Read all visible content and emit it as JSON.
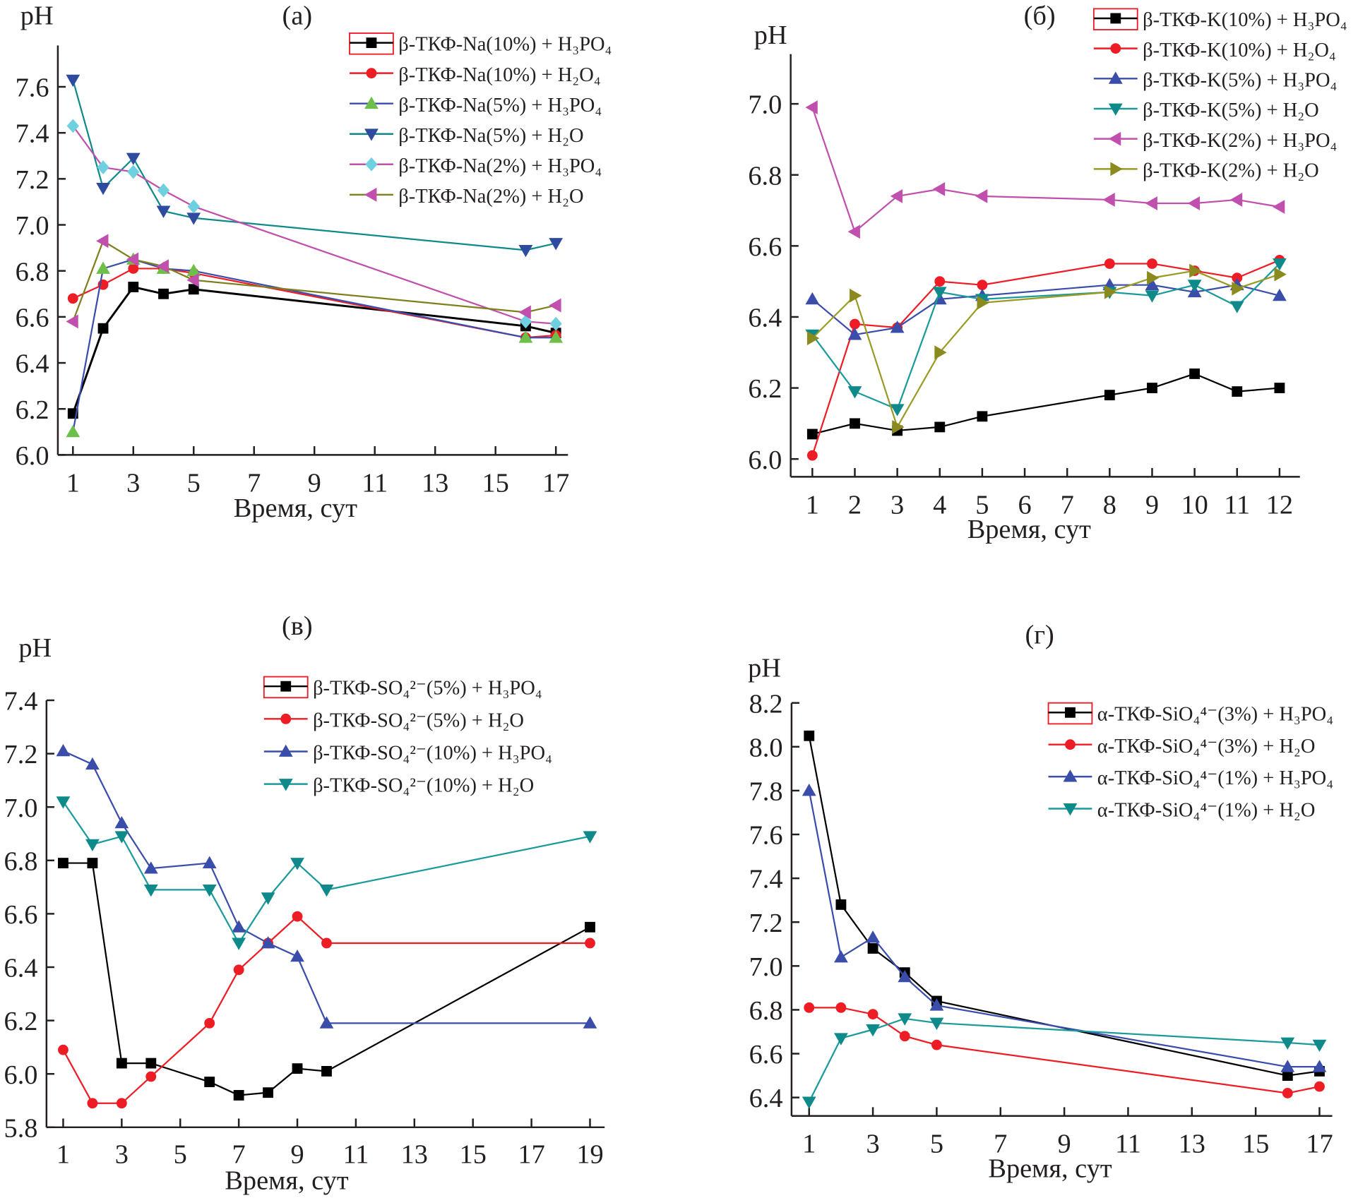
{
  "chart_data": [
    {
      "type": "line",
      "panel_label": "(a)",
      "ylabel": "pH",
      "xlabel": "Время, сут",
      "xlim": [
        0.5,
        17.4
      ],
      "ylim": [
        6.0,
        7.78
      ],
      "xticks": [
        1,
        3,
        5,
        7,
        9,
        11,
        13,
        15,
        17
      ],
      "yticks": [
        6.0,
        6.2,
        6.4,
        6.6,
        6.8,
        7.0,
        7.2,
        7.4,
        7.6
      ],
      "legend_position": "top-right",
      "x": [
        1,
        2,
        3,
        4,
        5,
        16,
        17
      ],
      "series": [
        {
          "name": "β-ТКФ-Na(10%) + H₃PO₄",
          "line_color": "#000000",
          "marker_color": "#000000",
          "marker": "square",
          "values": [
            6.18,
            6.55,
            6.73,
            6.7,
            6.72,
            6.56,
            6.53
          ]
        },
        {
          "name": "β-ТКФ-Na(10%) + H₂O₄",
          "line_color": "#ee1c25",
          "marker_color": "#ee1c25",
          "marker": "circle",
          "values": [
            6.68,
            6.74,
            6.81,
            6.81,
            6.79,
            6.51,
            6.52
          ]
        },
        {
          "name": "β-ТКФ-Na(5%) + H₃PO₄",
          "line_color": "#3a4dab",
          "marker_color": "#6cc04a",
          "marker": "triangle-up",
          "values": [
            6.1,
            6.81,
            6.85,
            6.81,
            6.8,
            6.51,
            6.51
          ]
        },
        {
          "name": "β-ТКФ-Na(5%) + H₂O",
          "line_color": "#0e8a8a",
          "marker_color": "#2f4ba0",
          "marker": "triangle-down",
          "values": [
            7.63,
            7.16,
            7.29,
            7.06,
            7.03,
            6.89,
            6.92
          ]
        },
        {
          "name": "β-ТКФ-Na(2%) + H₃PO₄",
          "line_color": "#c04fae",
          "marker_color": "#6fd0e0",
          "marker": "diamond",
          "values": [
            7.43,
            7.25,
            7.23,
            7.15,
            7.08,
            6.58,
            6.57
          ]
        },
        {
          "name": "β-ТКФ-Na(2%) + H₂O",
          "line_color": "#7f7f1e",
          "marker_color": "#c04fae",
          "marker": "triangle-left",
          "values": [
            6.58,
            6.93,
            6.85,
            6.82,
            6.76,
            6.62,
            6.65
          ]
        }
      ]
    },
    {
      "type": "line",
      "panel_label": "(б)",
      "ylabel": "pH",
      "xlabel": "Время, сут",
      "xlim": [
        0.49,
        12.48
      ],
      "ylim": [
        5.95,
        7.14
      ],
      "xticks": [
        1,
        2,
        3,
        4,
        5,
        6,
        7,
        8,
        9,
        10,
        11,
        12
      ],
      "yticks": [
        6.0,
        6.2,
        6.4,
        6.6,
        6.8,
        7.0
      ],
      "legend_position": "top-right",
      "x": [
        1,
        2,
        3,
        4,
        5,
        8,
        9,
        10,
        11,
        12
      ],
      "series": [
        {
          "name": "β-ТКФ-K(10%) + H₃PO₄",
          "line_color": "#000000",
          "marker_color": "#000000",
          "marker": "square",
          "values": [
            6.07,
            6.1,
            6.08,
            6.09,
            6.12,
            6.18,
            6.2,
            6.24,
            6.19,
            6.2
          ]
        },
        {
          "name": "β-ТКФ-K(10%) + H₂O₄",
          "line_color": "#ee1c25",
          "marker_color": "#ee1c25",
          "marker": "circle",
          "values": [
            6.01,
            6.38,
            6.37,
            6.5,
            6.49,
            6.55,
            6.55,
            6.53,
            6.51,
            6.56
          ]
        },
        {
          "name": "β-ТКФ-K(5%) + H₃PO₄",
          "line_color": "#3a4dab",
          "marker_color": "#3a4dab",
          "marker": "triangle-up",
          "values": [
            6.45,
            6.35,
            6.37,
            6.45,
            6.46,
            6.49,
            6.49,
            6.47,
            6.49,
            6.46
          ]
        },
        {
          "name": "β-ТКФ-K(5%) + H₂O",
          "line_color": "#1a9a9a",
          "marker_color": "#0e8a8a",
          "marker": "triangle-down",
          "values": [
            6.35,
            6.19,
            6.14,
            6.47,
            6.45,
            6.47,
            6.46,
            6.49,
            6.43,
            6.55
          ]
        },
        {
          "name": "β-ТКФ-K(2%) + H₃PO₄",
          "line_color": "#c04fae",
          "marker_color": "#c04fae",
          "marker": "triangle-left",
          "values": [
            6.99,
            6.64,
            6.74,
            6.76,
            6.74,
            6.73,
            6.72,
            6.72,
            6.73,
            6.71
          ]
        },
        {
          "name": "β-ТКФ-K(2%) + H₂O",
          "line_color": "#9a9a26",
          "marker_color": "#8a8a1e",
          "marker": "triangle-right",
          "values": [
            6.34,
            6.46,
            6.09,
            6.3,
            6.44,
            6.47,
            6.51,
            6.53,
            6.48,
            6.52
          ]
        }
      ]
    },
    {
      "type": "line",
      "panel_label": "(в)",
      "ylabel": "pH",
      "xlabel": "Время, сут",
      "xlim": [
        0.43,
        19.5
      ],
      "ylim": [
        5.8,
        7.4
      ],
      "xticks": [
        1,
        3,
        5,
        7,
        9,
        11,
        13,
        15,
        17,
        19
      ],
      "yticks": [
        5.8,
        6.0,
        6.2,
        6.4,
        6.6,
        6.8,
        7.0,
        7.2,
        7.4
      ],
      "legend_position": "top-right",
      "x": [
        1,
        2,
        3,
        4,
        6,
        7,
        8,
        9,
        10,
        19
      ],
      "series": [
        {
          "name": "β-ТКФ-SO₄²⁻(5%) + H₃PO₄",
          "line_color": "#000000",
          "marker_color": "#000000",
          "marker": "square",
          "values": [
            6.79,
            6.79,
            6.04,
            6.04,
            5.97,
            5.92,
            5.93,
            6.02,
            6.01,
            6.55
          ]
        },
        {
          "name": "β-ТКФ-SO₄²⁻(5%) + H₂O",
          "line_color": "#ee1c25",
          "marker_color": "#ee1c25",
          "marker": "circle",
          "values": [
            6.09,
            5.89,
            5.89,
            5.99,
            6.19,
            6.39,
            6.49,
            6.59,
            6.49,
            6.49
          ]
        },
        {
          "name": "β-ТКФ-SO₄²⁻(10%) + H₃PO₄",
          "line_color": "#3a4dab",
          "marker_color": "#3a4dab",
          "marker": "triangle-up",
          "values": [
            7.21,
            7.16,
            6.94,
            6.77,
            6.79,
            6.55,
            6.49,
            6.44,
            6.19,
            6.19
          ]
        },
        {
          "name": "β-ТКФ-SO₄²⁻(10%) + H₂O",
          "line_color": "#1a9a9a",
          "marker_color": "#0e8a8a",
          "marker": "triangle-down",
          "values": [
            7.02,
            6.86,
            6.89,
            6.69,
            6.69,
            6.49,
            6.66,
            6.79,
            6.69,
            6.89
          ]
        }
      ]
    },
    {
      "type": "line",
      "panel_label": "(г)",
      "ylabel": "pH",
      "xlabel": "Время, сут",
      "xlim": [
        0.45,
        17.4
      ],
      "ylim": [
        6.316,
        8.2
      ],
      "xticks": [
        1,
        3,
        5,
        7,
        9,
        11,
        13,
        15,
        17
      ],
      "yticks": [
        6.4,
        6.6,
        6.8,
        7.0,
        7.2,
        7.4,
        7.6,
        7.8,
        8.0,
        8.2
      ],
      "legend_position": "top-right",
      "x": [
        1,
        2,
        3,
        4,
        5,
        16,
        17
      ],
      "series": [
        {
          "name": "α-ТКФ-SiO₄⁴⁻(3%) + H₃PO₄",
          "line_color": "#000000",
          "marker_color": "#000000",
          "marker": "square",
          "values": [
            8.05,
            7.28,
            7.08,
            6.97,
            6.84,
            6.5,
            6.52
          ]
        },
        {
          "name": "α-ТКФ-SiO₄⁴⁻(3%) + H₂O",
          "line_color": "#ee1c25",
          "marker_color": "#ee1c25",
          "marker": "circle",
          "values": [
            6.81,
            6.81,
            6.78,
            6.68,
            6.64,
            6.42,
            6.45
          ]
        },
        {
          "name": "α-ТКФ-SiO₄⁴⁻(1%) + H₃PO₄",
          "line_color": "#3a4dab",
          "marker_color": "#3a4dab",
          "marker": "triangle-up",
          "values": [
            7.8,
            7.04,
            7.13,
            6.95,
            6.82,
            6.54,
            6.54
          ]
        },
        {
          "name": "α-ТКФ-SiO₄⁴⁻(1%) + H₂O",
          "line_color": "#1a9a9a",
          "marker_color": "#0e8a8a",
          "marker": "triangle-down",
          "values": [
            6.38,
            6.67,
            6.71,
            6.76,
            6.74,
            6.65,
            6.64
          ]
        }
      ]
    }
  ]
}
